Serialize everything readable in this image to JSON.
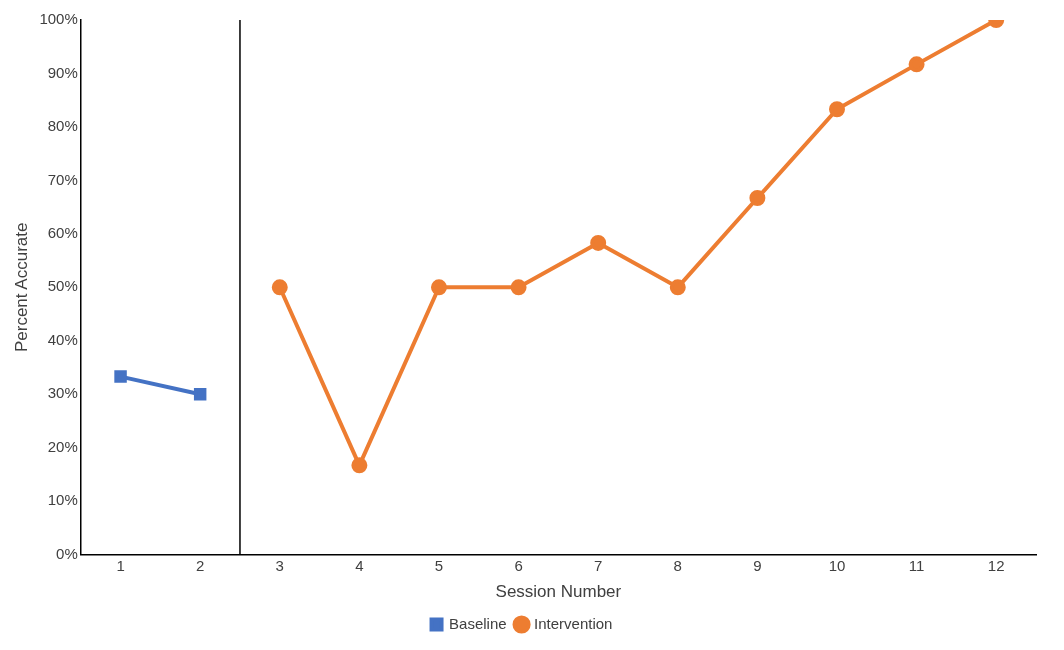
{
  "chart_data": {
    "type": "line",
    "xlabel": "Session Number",
    "ylabel": "Percent Accurate",
    "xlim": [
      0.5,
      12.5
    ],
    "xticks": [
      1,
      2,
      3,
      4,
      5,
      6,
      7,
      8,
      9,
      10,
      11,
      12
    ],
    "ylim": [
      0,
      100
    ],
    "yticks": [
      {
        "value": 0,
        "label": "0%"
      },
      {
        "value": 10,
        "label": "10%"
      },
      {
        "value": 20,
        "label": "20%"
      },
      {
        "value": 30,
        "label": "30%"
      },
      {
        "value": 40,
        "label": "40%"
      },
      {
        "value": 50,
        "label": "50%"
      },
      {
        "value": 60,
        "label": "60%"
      },
      {
        "value": 70,
        "label": "70%"
      },
      {
        "value": 80,
        "label": "80%"
      },
      {
        "value": 90,
        "label": "90%"
      },
      {
        "value": 100,
        "label": "100%"
      }
    ],
    "series": [
      {
        "name": "Baseline",
        "color": "#4472c4",
        "marker": "square",
        "x": [
          1,
          2
        ],
        "values": [
          33.3,
          30
        ]
      },
      {
        "name": "Intervention",
        "color": "#ed7d31",
        "marker": "circle",
        "x": [
          3,
          4,
          5,
          6,
          7,
          8,
          9,
          10,
          11,
          12
        ],
        "values": [
          50,
          16.7,
          50,
          50,
          58.3,
          50,
          66.7,
          83.3,
          91.7,
          100
        ]
      }
    ],
    "ref_lines": [
      {
        "axis": "x",
        "value": 2.5,
        "color": "#000000"
      }
    ],
    "grid": false,
    "legend": "bottom"
  }
}
